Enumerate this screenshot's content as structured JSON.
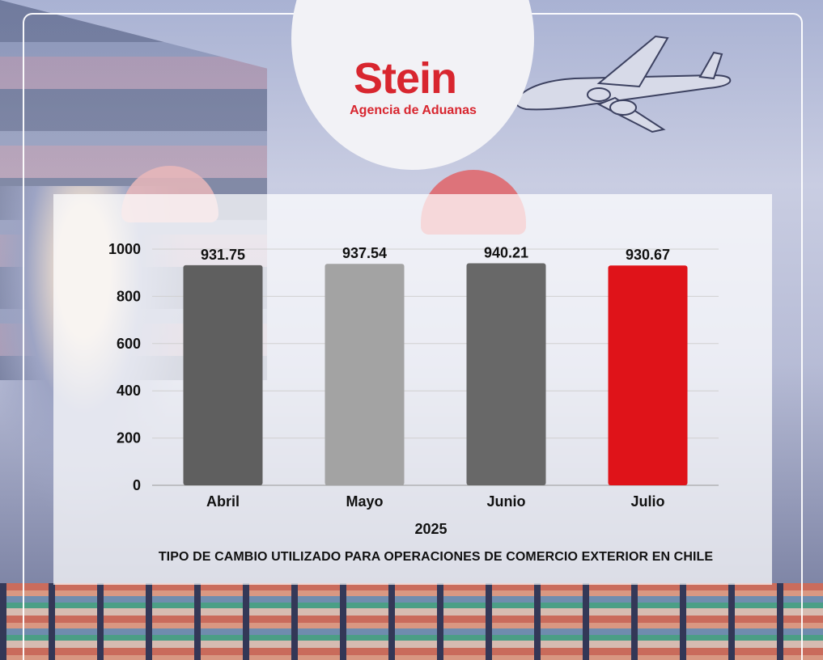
{
  "brand": {
    "name": "Stein",
    "tagline": "Agencia de Aduanas",
    "color": "#d8262f"
  },
  "chart_data": {
    "type": "bar",
    "categories": [
      "Abril",
      "Mayo",
      "Junio",
      "Julio"
    ],
    "values": [
      931.75,
      937.54,
      940.21,
      930.67
    ],
    "value_labels": [
      "931.75",
      "937.54",
      "940.21",
      "930.67"
    ],
    "bar_colors": [
      "#5f5f5f",
      "#a3a3a3",
      "#686868",
      "#df1319"
    ],
    "xlabel": "2025",
    "ylim": [
      0,
      1000
    ],
    "yticks": [
      0,
      200,
      400,
      600,
      800,
      1000
    ],
    "grid": true,
    "legend": "none"
  },
  "footnote": "TIPO DE CAMBIO UTILIZADO PARA OPERACIONES DE COMERCIO EXTERIOR EN CHILE"
}
